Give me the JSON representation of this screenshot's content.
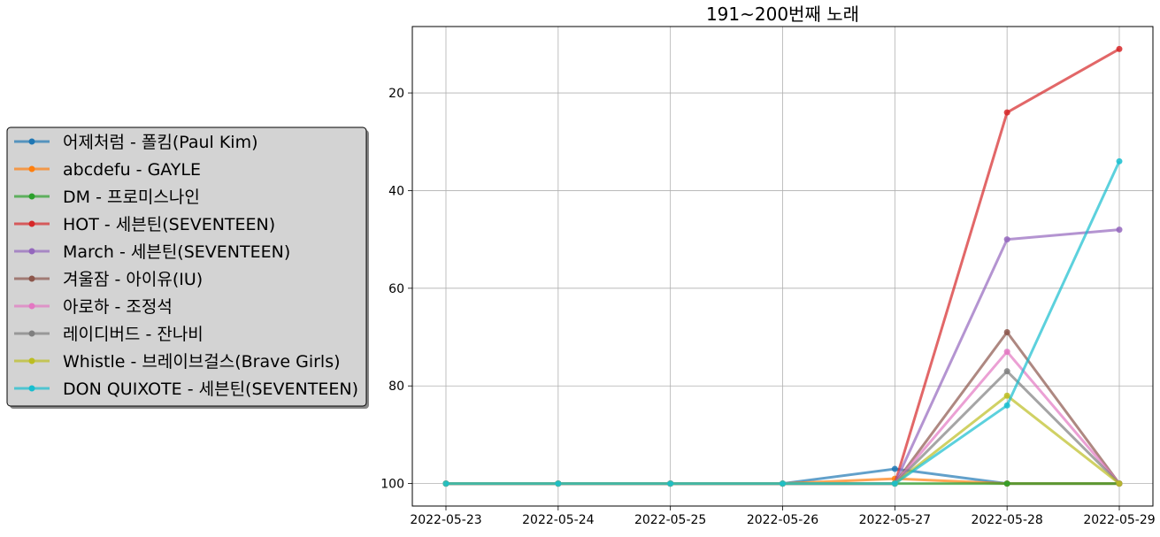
{
  "chart_data": {
    "type": "line",
    "title": "191~200번째 노래",
    "xlabel": "",
    "ylabel": "",
    "x": [
      "2022-05-23",
      "2022-05-24",
      "2022-05-25",
      "2022-05-26",
      "2022-05-27",
      "2022-05-28",
      "2022-05-29"
    ],
    "y_axis": {
      "inverted": true,
      "ylim": [
        104.6,
        6.4
      ],
      "ticks": [
        20,
        40,
        60,
        80,
        100
      ]
    },
    "grid": true,
    "legend_placement": "left",
    "series": [
      {
        "name": "어제처럼 - 폴킴(Paul Kim)",
        "color": "#1f77b4",
        "values": [
          100,
          100,
          100,
          100,
          97,
          100,
          100
        ]
      },
      {
        "name": "abcdefu - GAYLE",
        "color": "#ff7f0e",
        "values": [
          100,
          100,
          100,
          100,
          99,
          100,
          100
        ]
      },
      {
        "name": "DM - 프로미스나인",
        "color": "#2ca02c",
        "values": [
          100,
          100,
          100,
          100,
          100,
          100,
          100
        ]
      },
      {
        "name": "HOT - 세븐틴(SEVENTEEN)",
        "color": "#d62728",
        "values": [
          100,
          100,
          100,
          100,
          100,
          24,
          11
        ]
      },
      {
        "name": "March - 세븐틴(SEVENTEEN)",
        "color": "#9467bd",
        "values": [
          100,
          100,
          100,
          100,
          100,
          50,
          48
        ]
      },
      {
        "name": "겨울잠 - 아이유(IU)",
        "color": "#8c564b",
        "values": [
          100,
          100,
          100,
          100,
          100,
          69,
          100
        ]
      },
      {
        "name": "아로하 - 조정석",
        "color": "#e377c2",
        "values": [
          100,
          100,
          100,
          100,
          100,
          73,
          100
        ]
      },
      {
        "name": "레이디버드 - 잔나비",
        "color": "#7f7f7f",
        "values": [
          100,
          100,
          100,
          100,
          100,
          77,
          100
        ]
      },
      {
        "name": "Whistle - 브레이브걸스(Brave Girls)",
        "color": "#bcbd22",
        "values": [
          100,
          100,
          100,
          100,
          100,
          82,
          100
        ]
      },
      {
        "name": "DON QUIXOTE - 세븐틴(SEVENTEEN)",
        "color": "#17becf",
        "values": [
          100,
          100,
          100,
          100,
          100,
          84,
          34
        ]
      }
    ]
  }
}
